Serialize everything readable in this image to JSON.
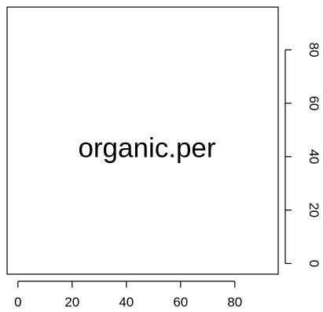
{
  "chart_data": {
    "type": "scatter",
    "title": "",
    "panel_label": "organic.per",
    "xlabel": "",
    "ylabel": "",
    "xlim": [
      -4,
      96
    ],
    "ylim": [
      -4,
      96
    ],
    "x_ticks": [
      "0",
      "20",
      "40",
      "60",
      "80"
    ],
    "y_ticks": [
      "0",
      "20",
      "40",
      "60",
      "80"
    ],
    "x_axis_side": "bottom",
    "y_axis_side": "right",
    "grid": false,
    "legend": "none",
    "series": []
  },
  "colors": {
    "background": "#ffffff",
    "axis": "#000000",
    "text": "#000000"
  }
}
